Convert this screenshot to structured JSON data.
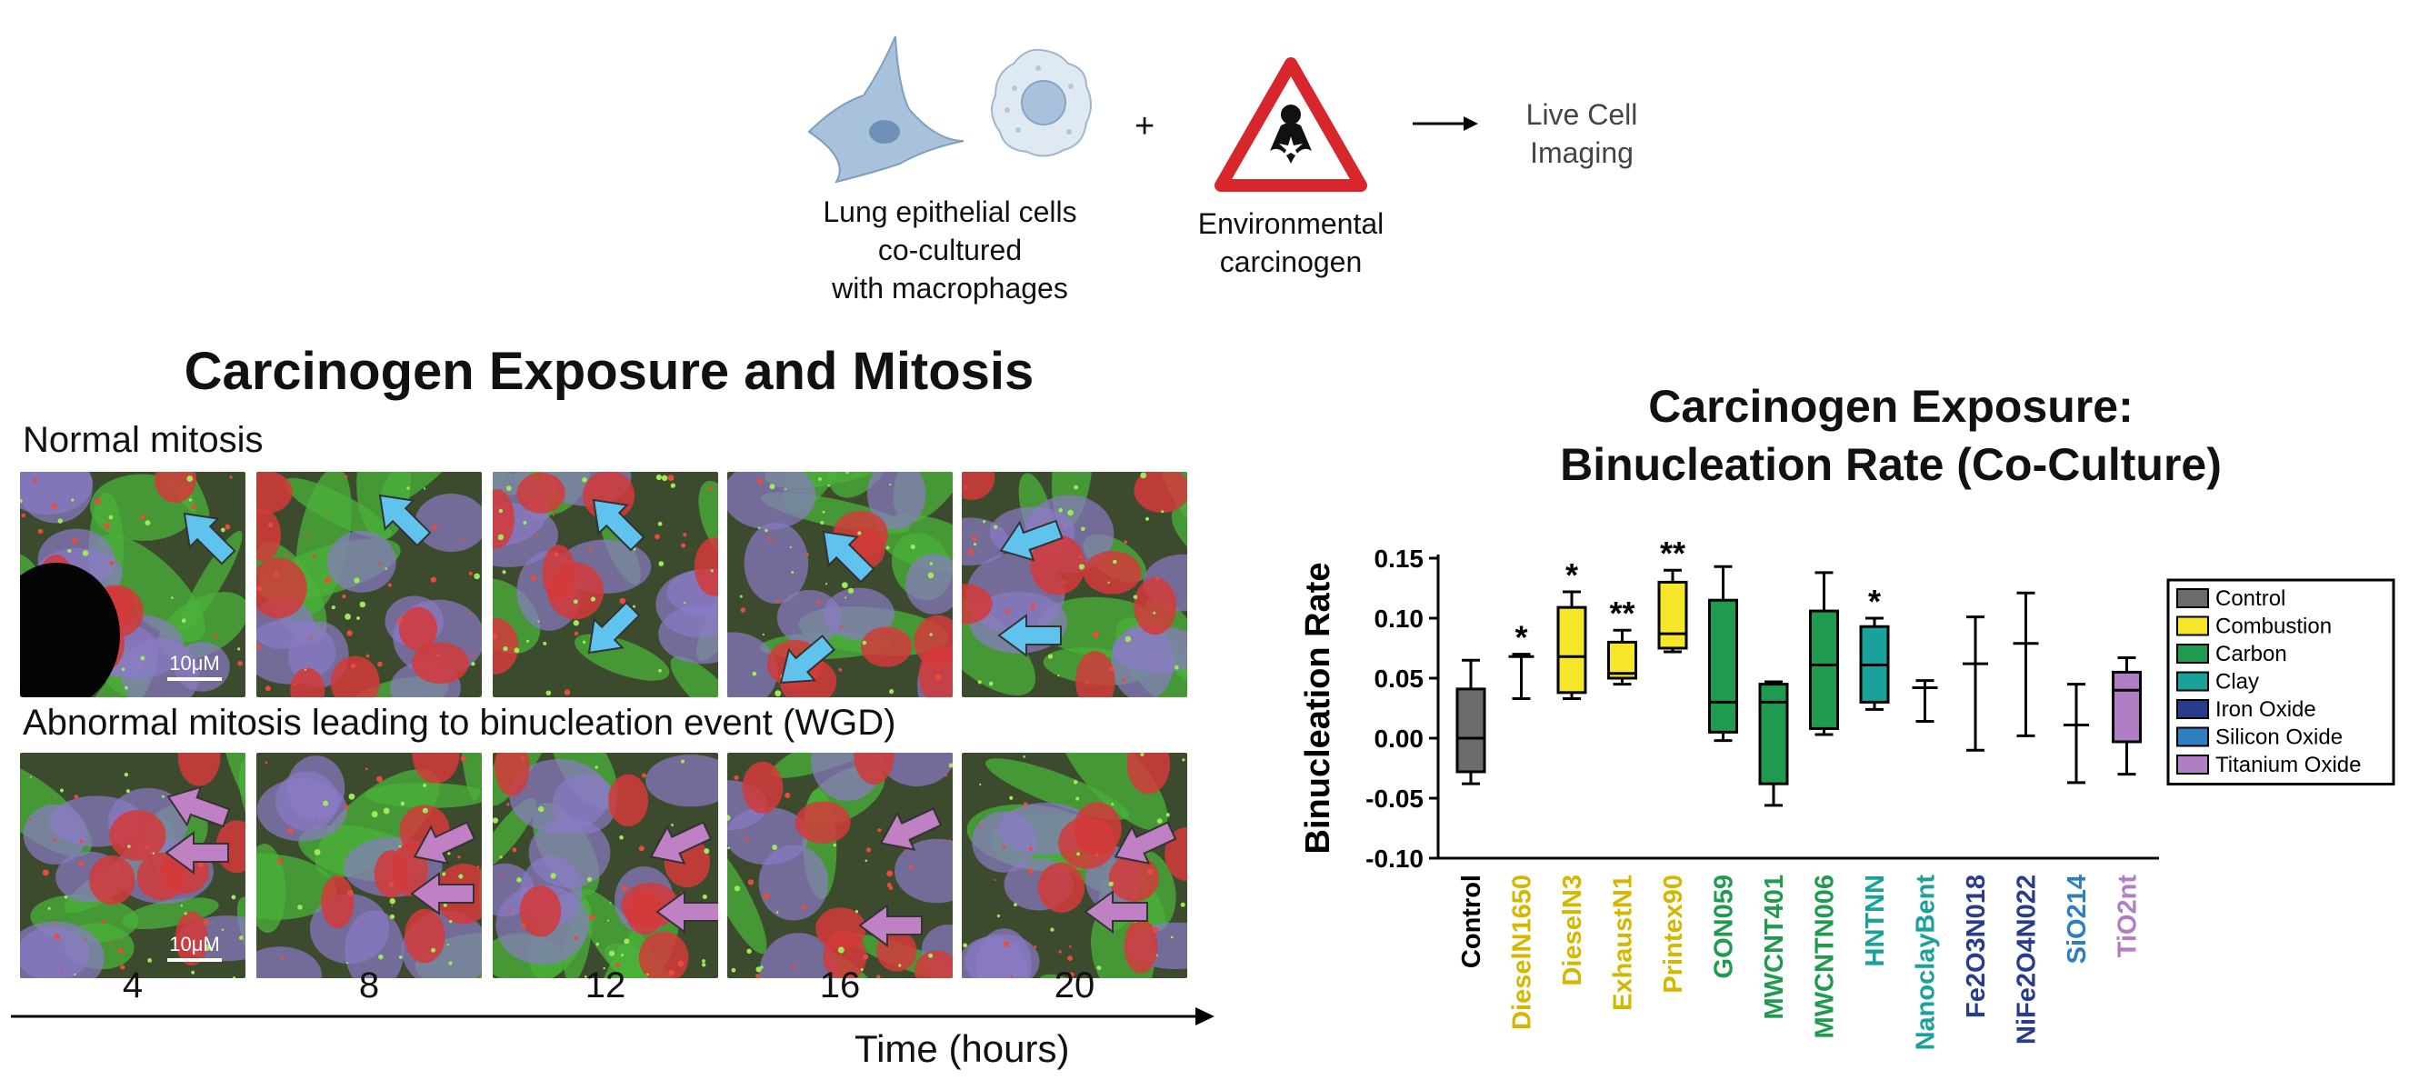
{
  "schematic": {
    "cells_label": [
      "Lung epithelial cells",
      "co-cultured",
      "with macrophages"
    ],
    "plus": "+",
    "carcinogen_label": [
      "Environmental",
      "carcinogen"
    ],
    "result_label": [
      "Live Cell",
      "Imaging"
    ]
  },
  "left_panel": {
    "title": "Carcinogen Exposure and Mitosis",
    "row1_label": "Normal mitosis",
    "row2_label": "Abnormal mitosis leading to binucleation event (WGD)",
    "scale_bar": "10μM",
    "time_points": [
      "4",
      "8",
      "12",
      "16",
      "20"
    ],
    "time_axis_label": "Time (hours)"
  },
  "colors": {
    "combustion": "#f5e62a",
    "carbon": "#1f9a4f",
    "clay": "#1aa29a",
    "iron_oxide": "#283c8c",
    "silicon_oxide": "#2f7fc0",
    "titanium_oxide": "#b07ec4",
    "control": "#6b6b6b",
    "arrow_normal": "#5fc3ee",
    "arrow_abnormal": "#c080c4",
    "hazard_red": "#d7262c"
  },
  "chart_data": {
    "type": "box",
    "title": [
      "Carcinogen Exposure:",
      "Binucleation Rate (Co-Culture)"
    ],
    "ylabel": "Binucleation Rate",
    "xlabel": "",
    "ylim": [
      -0.1,
      0.15
    ],
    "yticks": [
      "0.15",
      "0.10",
      "0.05",
      "0.00",
      "-0.05",
      "-0.10"
    ],
    "ytick_values": [
      0.15,
      0.1,
      0.05,
      0.0,
      -0.05,
      -0.1
    ],
    "legend_position": "right",
    "legend": [
      {
        "name": "Control",
        "color": "#6b6b6b"
      },
      {
        "name": "Combustion",
        "color": "#f5e62a"
      },
      {
        "name": "Carbon",
        "color": "#1f9a4f"
      },
      {
        "name": "Clay",
        "color": "#1aa29a"
      },
      {
        "name": "Iron Oxide",
        "color": "#283c8c"
      },
      {
        "name": "Silicon Oxide",
        "color": "#2f7fc0"
      },
      {
        "name": "Titanium Oxide",
        "color": "#b07ec4"
      }
    ],
    "categories": [
      {
        "name": "Control",
        "group": "Control",
        "label_color": "#000000",
        "min": -0.038,
        "q1": -0.028,
        "median": 0.0,
        "q3": 0.041,
        "max": 0.065,
        "box": true,
        "sig": ""
      },
      {
        "name": "DieselN1650",
        "group": "Combustion",
        "label_color": "#d4b800",
        "min": 0.033,
        "q1": 0.063,
        "median": 0.068,
        "q3": 0.07,
        "max": 0.07,
        "box": false,
        "sig": "*"
      },
      {
        "name": "DieselN3",
        "group": "Combustion",
        "label_color": "#d4b800",
        "min": 0.033,
        "q1": 0.038,
        "median": 0.068,
        "q3": 0.109,
        "max": 0.122,
        "box": true,
        "sig": "*"
      },
      {
        "name": "ExhaustN1",
        "group": "Combustion",
        "label_color": "#d4b800",
        "min": 0.045,
        "q1": 0.05,
        "median": 0.054,
        "q3": 0.08,
        "max": 0.09,
        "box": true,
        "sig": "**"
      },
      {
        "name": "Printex90",
        "group": "Combustion",
        "label_color": "#d4b800",
        "min": 0.072,
        "q1": 0.075,
        "median": 0.087,
        "q3": 0.13,
        "max": 0.14,
        "box": true,
        "sig": "**"
      },
      {
        "name": "GON059",
        "group": "Carbon",
        "label_color": "#1f9a4f",
        "min": -0.002,
        "q1": 0.005,
        "median": 0.03,
        "q3": 0.115,
        "max": 0.143,
        "box": true,
        "sig": ""
      },
      {
        "name": "MWCNT401",
        "group": "Carbon",
        "label_color": "#1f9a4f",
        "min": -0.056,
        "q1": -0.038,
        "median": 0.03,
        "q3": 0.045,
        "max": 0.047,
        "box": true,
        "sig": ""
      },
      {
        "name": "MWCNTN006",
        "group": "Carbon",
        "label_color": "#1f9a4f",
        "min": 0.003,
        "q1": 0.008,
        "median": 0.061,
        "q3": 0.106,
        "max": 0.138,
        "box": true,
        "sig": ""
      },
      {
        "name": "HNTNN",
        "group": "Clay",
        "label_color": "#1aa29a",
        "min": 0.024,
        "q1": 0.03,
        "median": 0.061,
        "q3": 0.093,
        "max": 0.1,
        "box": true,
        "sig": "*"
      },
      {
        "name": "NanoclayBent",
        "group": "Clay",
        "label_color": "#1aa29a",
        "min": 0.014,
        "q1": 0.042,
        "median": 0.042,
        "q3": 0.046,
        "max": 0.048,
        "box": false,
        "sig": ""
      },
      {
        "name": "Fe2O3N018",
        "group": "Iron Oxide",
        "label_color": "#283c8c",
        "min": -0.01,
        "q1": 0.062,
        "median": 0.062,
        "q3": 0.062,
        "max": 0.101,
        "box": false,
        "sig": ""
      },
      {
        "name": "NiFe2O4N022",
        "group": "Iron Oxide",
        "label_color": "#283c8c",
        "min": 0.002,
        "q1": 0.079,
        "median": 0.079,
        "q3": 0.079,
        "max": 0.121,
        "box": false,
        "sig": ""
      },
      {
        "name": "SiO214",
        "group": "Silicon Oxide",
        "label_color": "#2f7fc0",
        "min": -0.037,
        "q1": 0.011,
        "median": 0.011,
        "q3": 0.011,
        "max": 0.045,
        "box": false,
        "sig": ""
      },
      {
        "name": "TiO2nt",
        "group": "Titanium Oxide",
        "label_color": "#b07ec4",
        "min": -0.03,
        "q1": -0.003,
        "median": 0.04,
        "q3": 0.055,
        "max": 0.067,
        "box": true,
        "sig": ""
      }
    ]
  }
}
